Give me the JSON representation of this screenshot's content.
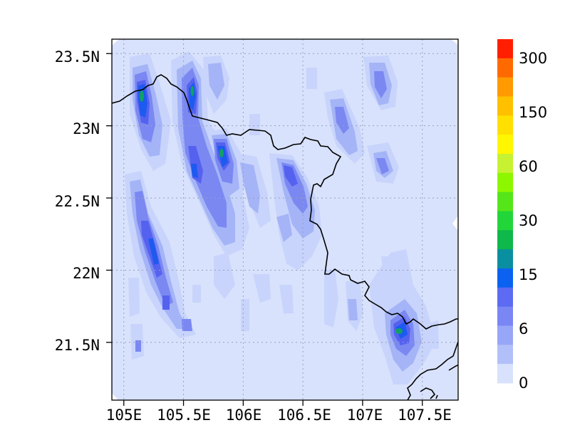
{
  "map": {
    "lon_range": [
      104.9,
      107.8
    ],
    "lat_range": [
      21.1,
      23.6
    ],
    "lon_ticks": [
      "105E",
      "105.5E",
      "106E",
      "106.5E",
      "107E",
      "107.5E"
    ],
    "lat_ticks": [
      "23.5N",
      "23N",
      "22.5N",
      "22N",
      "21.5N"
    ],
    "gridlines": true,
    "background_level_color": "#d8e2fc"
  },
  "colorbar": {
    "labels": [
      "300",
      "150",
      "60",
      "30",
      "15",
      "6",
      "0"
    ],
    "colors": [
      "#ff1e00",
      "#ff6a00",
      "#ff9a00",
      "#ffc000",
      "#ffe000",
      "#fff700",
      "#c6f232",
      "#8df700",
      "#55e61a",
      "#22d63a",
      "#0fb84a",
      "#0a8fa0",
      "#0b62f0",
      "#5c6bf2",
      "#7a86f4",
      "#98a6f7",
      "#b2c0f9",
      "#d8e2fc"
    ]
  },
  "field_colors": {
    "level1": "#c8d4fb",
    "level2": "#a4b4f7",
    "level3": "#7b88f2",
    "level4": "#5562ef",
    "level5": "#1d5af0",
    "level6": "#11a066"
  }
}
